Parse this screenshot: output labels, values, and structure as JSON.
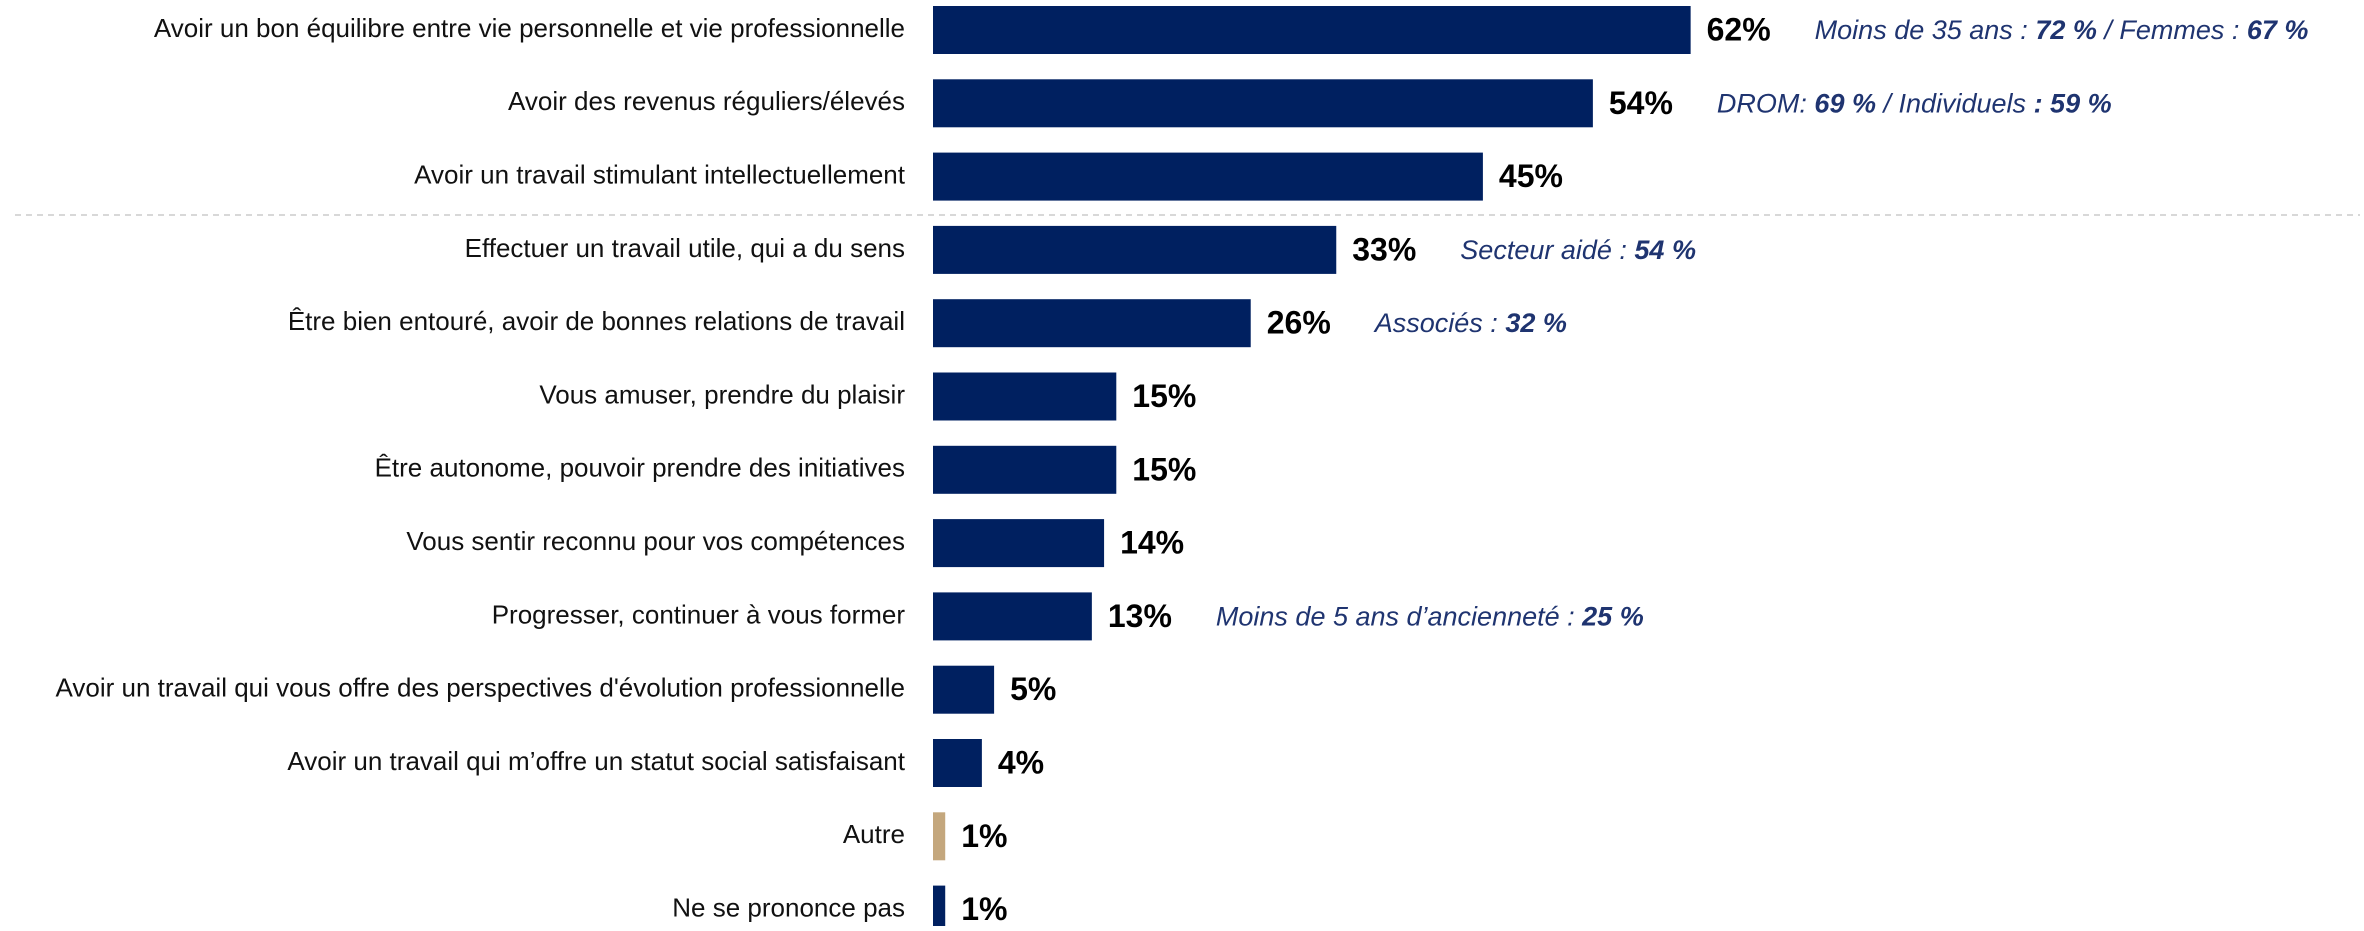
{
  "chart_data": {
    "type": "barh",
    "categories": [
      "Avoir un bon équilibre entre vie personnelle et vie professionnelle",
      "Avoir des revenus réguliers/élevés",
      "Avoir un travail stimulant intellectuellement",
      "Effectuer un travail utile, qui a du sens",
      "Être bien entouré, avoir de bonnes relations de travail",
      "Vous amuser, prendre du plaisir",
      "Être autonome, pouvoir prendre des initiatives",
      "Vous sentir reconnu pour vos compétences",
      "Progresser, continuer à vous former",
      "Avoir un travail qui vous offre des perspectives d'évolution professionnelle",
      "Avoir un travail qui m’offre un statut social satisfaisant",
      "Autre",
      "Ne se prononce pas"
    ],
    "values": [
      62,
      54,
      45,
      33,
      26,
      15,
      15,
      14,
      13,
      5,
      4,
      1,
      1
    ],
    "value_labels": [
      "62%",
      "54%",
      "45%",
      "33%",
      "26%",
      "15%",
      "15%",
      "14%",
      "13%",
      "5%",
      "4%",
      "1%",
      "1%"
    ],
    "colors": [
      "#002060",
      "#002060",
      "#002060",
      "#002060",
      "#002060",
      "#002060",
      "#002060",
      "#002060",
      "#002060",
      "#002060",
      "#002060",
      "#c4a77d",
      "#002060"
    ],
    "xlim": [
      0,
      100
    ],
    "annotations": [
      [
        {
          "text": "Moins de 35 ans : ",
          "bold": false
        },
        {
          "text": "72 %",
          "bold": true
        },
        {
          "text": " / Femmes : ",
          "bold": false
        },
        {
          "text": "67 %",
          "bold": true
        }
      ],
      [
        {
          "text": "DROM: ",
          "bold": false
        },
        {
          "text": "69 %",
          "bold": true
        },
        {
          "text": " / Individuels ",
          "bold": false
        },
        {
          "text": ": 59 %",
          "bold": true
        }
      ],
      null,
      [
        {
          "text": "Secteur aidé : ",
          "bold": false
        },
        {
          "text": "54 %",
          "bold": true
        }
      ],
      [
        {
          "text": "Associés : ",
          "bold": false
        },
        {
          "text": "32 %",
          "bold": true
        }
      ],
      null,
      null,
      null,
      [
        {
          "text": "Moins de 5 ans d’ancienneté : ",
          "bold": false
        },
        {
          "text": "25 %",
          "bold": true
        }
      ],
      null,
      null,
      null,
      null
    ],
    "annotation_color": "#1f3470"
  }
}
